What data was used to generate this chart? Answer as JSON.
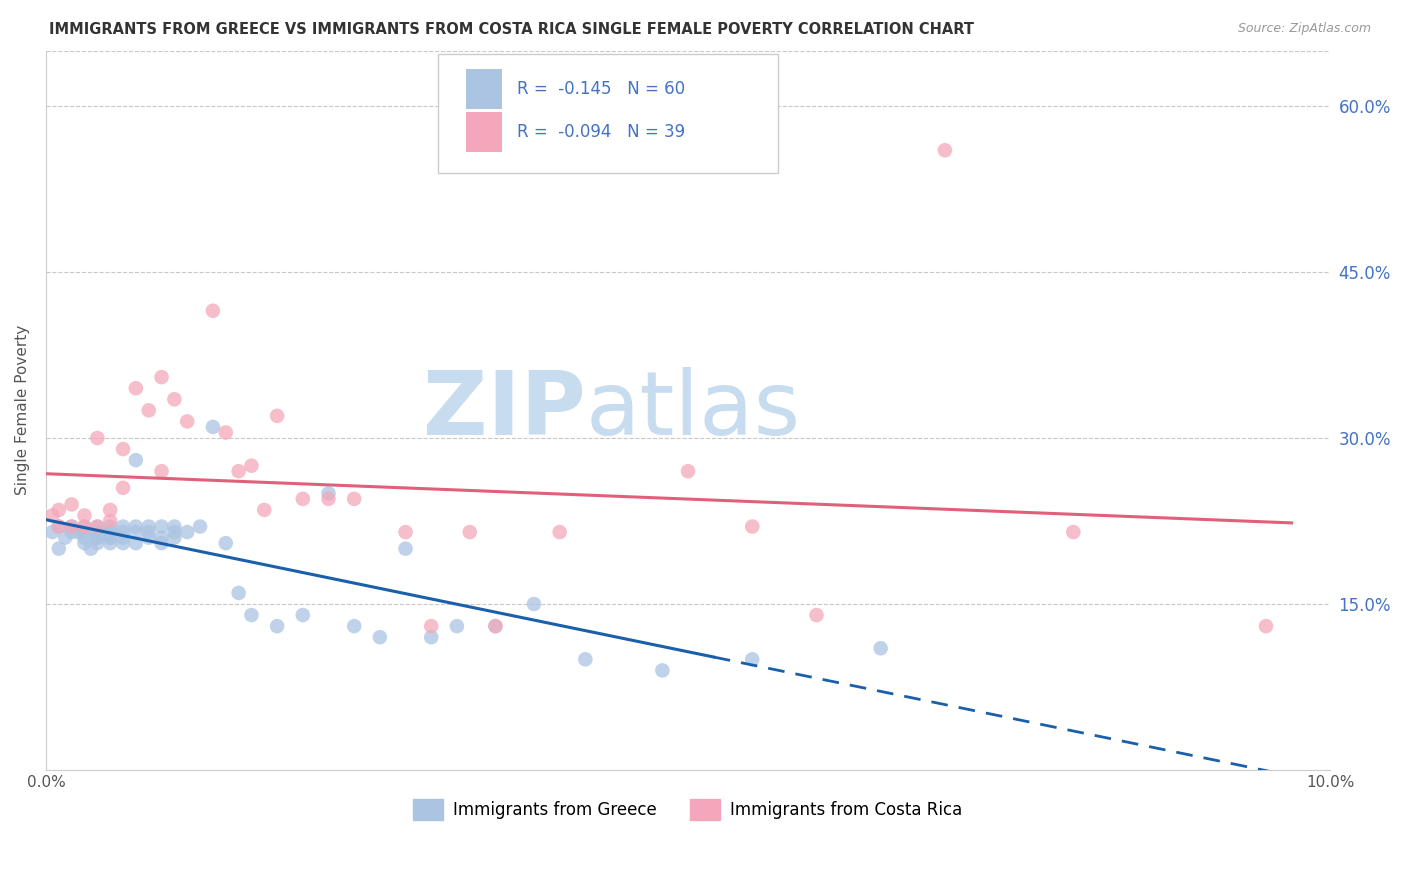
{
  "title": "IMMIGRANTS FROM GREECE VS IMMIGRANTS FROM COSTA RICA SINGLE FEMALE POVERTY CORRELATION CHART",
  "source": "Source: ZipAtlas.com",
  "ylabel": "Single Female Poverty",
  "right_ytick_labels": [
    "15.0%",
    "30.0%",
    "45.0%",
    "60.0%"
  ],
  "right_ytick_values": [
    0.15,
    0.3,
    0.45,
    0.6
  ],
  "xlim": [
    0.0,
    0.1
  ],
  "ylim": [
    0.0,
    0.65
  ],
  "legend_R_greece": "-0.145",
  "legend_N_greece": "60",
  "legend_R_costa": "-0.094",
  "legend_N_costa": "39",
  "greece_color": "#aac4e2",
  "costa_color": "#f4a7ba",
  "greece_line_color": "#1a5faa",
  "costa_line_color": "#e0607a",
  "watermark_zip": "ZIP",
  "watermark_atlas": "atlas",
  "greece_x": [
    0.0005,
    0.001,
    0.001,
    0.0015,
    0.002,
    0.002,
    0.0025,
    0.003,
    0.003,
    0.003,
    0.003,
    0.0035,
    0.004,
    0.004,
    0.004,
    0.004,
    0.004,
    0.005,
    0.005,
    0.005,
    0.005,
    0.005,
    0.005,
    0.006,
    0.006,
    0.006,
    0.006,
    0.007,
    0.007,
    0.007,
    0.007,
    0.008,
    0.008,
    0.008,
    0.009,
    0.009,
    0.009,
    0.01,
    0.01,
    0.01,
    0.011,
    0.012,
    0.013,
    0.014,
    0.015,
    0.016,
    0.018,
    0.02,
    0.022,
    0.024,
    0.026,
    0.028,
    0.03,
    0.032,
    0.035,
    0.038,
    0.042,
    0.048,
    0.055,
    0.065
  ],
  "greece_y": [
    0.215,
    0.2,
    0.22,
    0.21,
    0.215,
    0.22,
    0.215,
    0.205,
    0.21,
    0.215,
    0.22,
    0.2,
    0.21,
    0.215,
    0.205,
    0.22,
    0.21,
    0.21,
    0.215,
    0.205,
    0.22,
    0.21,
    0.215,
    0.215,
    0.22,
    0.205,
    0.21,
    0.28,
    0.22,
    0.215,
    0.205,
    0.21,
    0.22,
    0.215,
    0.21,
    0.22,
    0.205,
    0.21,
    0.22,
    0.215,
    0.215,
    0.22,
    0.31,
    0.205,
    0.16,
    0.14,
    0.13,
    0.14,
    0.25,
    0.13,
    0.12,
    0.2,
    0.12,
    0.13,
    0.13,
    0.15,
    0.1,
    0.09,
    0.1,
    0.11
  ],
  "costa_x": [
    0.0005,
    0.001,
    0.001,
    0.002,
    0.002,
    0.003,
    0.003,
    0.004,
    0.004,
    0.005,
    0.005,
    0.006,
    0.006,
    0.007,
    0.008,
    0.009,
    0.009,
    0.01,
    0.011,
    0.013,
    0.014,
    0.015,
    0.016,
    0.017,
    0.018,
    0.02,
    0.022,
    0.024,
    0.028,
    0.03,
    0.033,
    0.035,
    0.04,
    0.05,
    0.055,
    0.06,
    0.07,
    0.08,
    0.095
  ],
  "costa_y": [
    0.23,
    0.22,
    0.235,
    0.22,
    0.24,
    0.22,
    0.23,
    0.3,
    0.22,
    0.235,
    0.225,
    0.29,
    0.255,
    0.345,
    0.325,
    0.355,
    0.27,
    0.335,
    0.315,
    0.415,
    0.305,
    0.27,
    0.275,
    0.235,
    0.32,
    0.245,
    0.245,
    0.245,
    0.215,
    0.13,
    0.215,
    0.13,
    0.215,
    0.27,
    0.22,
    0.14,
    0.56,
    0.215,
    0.13
  ]
}
